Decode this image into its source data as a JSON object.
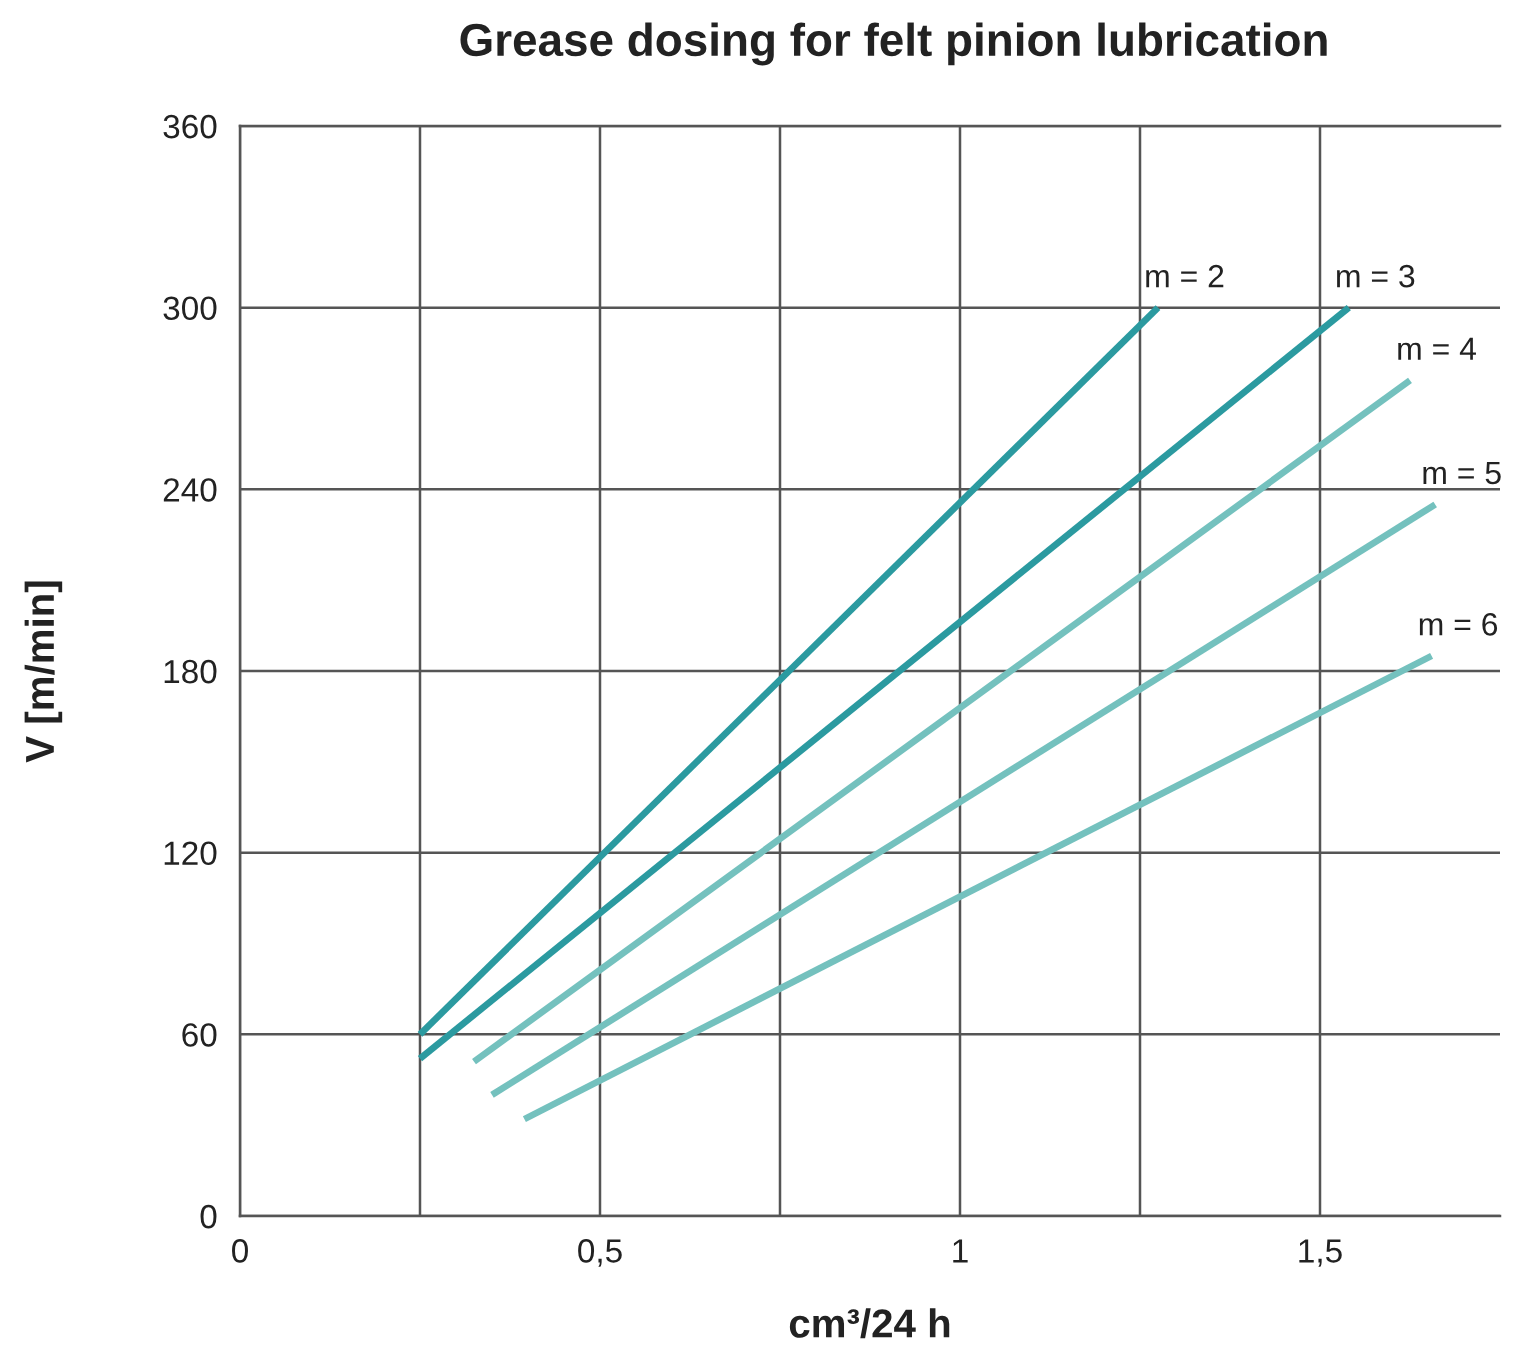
{
  "chart_data": {
    "type": "line",
    "title": "Grease dosing for felt pinion lubrication",
    "xlabel": "cm³/24 h",
    "ylabel": "V [m/min]",
    "xlim": [
      0,
      1.75
    ],
    "ylim": [
      0,
      360
    ],
    "xticks": [
      0,
      {
        "value": 0.25,
        "label": null
      },
      {
        "value": 0.5,
        "label": "0,5"
      },
      {
        "value": 0.75,
        "label": null
      },
      1,
      {
        "value": 1.25,
        "label": null
      },
      {
        "value": 1.5,
        "label": "1,5"
      }
    ],
    "yticks": [
      0,
      60,
      120,
      180,
      240,
      300,
      360
    ],
    "grid": true,
    "marker": "none",
    "line_style": "solid",
    "series": [
      {
        "name": "m = 2",
        "color": "#2b9aa0",
        "x": [
          0.25,
          1.275
        ],
        "values": [
          60,
          300
        ]
      },
      {
        "name": "m = 3",
        "color": "#2b9aa0",
        "x": [
          0.25,
          1.54
        ],
        "values": [
          52,
          300
        ]
      },
      {
        "name": "m = 4",
        "color": "#74c1be",
        "x": [
          0.325,
          1.625
        ],
        "values": [
          51,
          276
        ]
      },
      {
        "name": "m = 5",
        "color": "#74c1be",
        "x": [
          0.35,
          1.66
        ],
        "values": [
          40,
          235
        ]
      },
      {
        "name": "m = 6",
        "color": "#74c1be",
        "x": [
          0.395,
          1.655
        ],
        "values": [
          32,
          185
        ]
      }
    ]
  }
}
